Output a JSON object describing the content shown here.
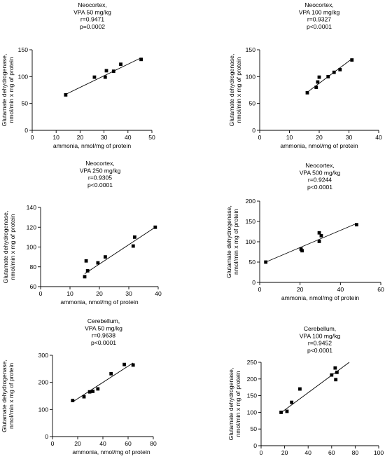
{
  "chart_data": [
    {
      "type": "scatter",
      "title_lines": [
        "Neocortex,",
        "VPA 50 mg/kg",
        "r=0.9471",
        "p=0.0002"
      ],
      "xlabel": "ammonia, nmol/mg of protein",
      "ylabel_lines": [
        "Glutamate dehydrogenase,",
        "nmol/min x mg of protein"
      ],
      "xlim": [
        0,
        50
      ],
      "ylim": [
        0,
        150
      ],
      "xticks": [
        0,
        10,
        20,
        30,
        40,
        50
      ],
      "yticks": [
        0,
        50,
        100,
        150
      ],
      "points": [
        [
          14,
          66
        ],
        [
          26,
          99
        ],
        [
          30.5,
          99
        ],
        [
          31,
          111
        ],
        [
          34,
          110
        ],
        [
          37,
          123
        ],
        [
          45.5,
          132
        ]
      ],
      "fit": [
        [
          14,
          67
        ],
        [
          45.5,
          135
        ]
      ]
    },
    {
      "type": "scatter",
      "title_lines": [
        "Neocortex,",
        "VPA 100 mg/kg",
        "r=0.9327",
        "p<0.0001"
      ],
      "xlabel": "ammonia, nmol/mg of protein",
      "ylabel_lines": [
        "Glutamate dehydrogenase,",
        "nmol/min x mg of protein"
      ],
      "xlim": [
        0,
        40
      ],
      "ylim": [
        0,
        150
      ],
      "xticks": [
        0,
        10,
        20,
        30,
        40
      ],
      "yticks": [
        0,
        50,
        100,
        150
      ],
      "points": [
        [
          16,
          70
        ],
        [
          19,
          80
        ],
        [
          19.5,
          90
        ],
        [
          20,
          99
        ],
        [
          23,
          100
        ],
        [
          25,
          108
        ],
        [
          27,
          113
        ],
        [
          31,
          131
        ]
      ],
      "fit": [
        [
          16,
          71
        ],
        [
          31,
          133
        ]
      ]
    },
    {
      "type": "scatter",
      "title_lines": [
        "Neocortex,",
        "VPA 250 mg/kg",
        "r=0.9305",
        "p<0.0001"
      ],
      "xlabel": "ammonia, nmol/mg of protein",
      "ylabel_lines": [
        "Glutamate dehydrogenase,",
        "nmol/min x mg of protein"
      ],
      "xlim": [
        0,
        40
      ],
      "ylim": [
        60,
        140
      ],
      "xticks": [
        0,
        10,
        20,
        30,
        40
      ],
      "yticks": [
        60,
        80,
        100,
        120,
        140
      ],
      "points": [
        [
          15,
          70
        ],
        [
          15.5,
          86
        ],
        [
          16,
          76
        ],
        [
          19.5,
          84
        ],
        [
          22,
          90
        ],
        [
          31.5,
          101
        ],
        [
          32,
          110
        ],
        [
          39,
          120
        ]
      ],
      "fit": [
        [
          15,
          73
        ],
        [
          39,
          120
        ]
      ]
    },
    {
      "type": "scatter",
      "title_lines": [
        "Neocortex,",
        "VPA 500 mg/kg",
        "r=0.9244",
        "p<0.0001"
      ],
      "xlabel": "ammonia, nmol/mg of protein",
      "ylabel_lines": [
        "Glutamate dehydrogenase,",
        "nmol/min x mg of protein"
      ],
      "xlim": [
        0,
        60
      ],
      "ylim": [
        0,
        200
      ],
      "xticks": [
        0,
        20,
        40,
        60
      ],
      "yticks": [
        0,
        50,
        100,
        150,
        200
      ],
      "points": [
        [
          3,
          50
        ],
        [
          20.5,
          82
        ],
        [
          21,
          78
        ],
        [
          29.5,
          101
        ],
        [
          29.5,
          122
        ],
        [
          30.5,
          115
        ],
        [
          48,
          142
        ]
      ],
      "fit": [
        [
          3,
          50
        ],
        [
          48,
          145
        ]
      ]
    },
    {
      "type": "scatter",
      "title_lines": [
        "Cerebellum,",
        "VPA 50 mg/kg",
        "r=0.9638",
        "p<0.0001"
      ],
      "xlabel": "ammonia, nmol/mg of protein",
      "ylabel_lines": [
        "Glutamate dehydrogenase,",
        "nmol/min x mg of protein"
      ],
      "xlim": [
        0,
        80
      ],
      "ylim": [
        0,
        300
      ],
      "xticks": [
        0,
        20,
        40,
        60,
        80
      ],
      "yticks": [
        0,
        100,
        200,
        300
      ],
      "points": [
        [
          16,
          133
        ],
        [
          25,
          147
        ],
        [
          29.5,
          165
        ],
        [
          32,
          167
        ],
        [
          36,
          176
        ],
        [
          46.5,
          232
        ],
        [
          57,
          266
        ],
        [
          64,
          264
        ]
      ],
      "fit": [
        [
          16,
          128
        ],
        [
          64,
          272
        ]
      ]
    },
    {
      "type": "scatter",
      "title_lines": [
        "Cerebellum,",
        "VPA 100 mg/kg",
        "r=0.9452",
        "p<0.0001"
      ],
      "xlabel": "ammonia, nmol/mg of protein",
      "ylabel_lines": [
        "Glutamate dehydrogenase,",
        "nmol/min x mg of protein"
      ],
      "xlim": [
        0,
        100
      ],
      "ylim": [
        0,
        250
      ],
      "xticks": [
        0,
        20,
        40,
        60,
        80,
        100
      ],
      "yticks": [
        0,
        50,
        100,
        150,
        200,
        250
      ],
      "points": [
        [
          17,
          100
        ],
        [
          22,
          103
        ],
        [
          26,
          130
        ],
        [
          33,
          170
        ],
        [
          60,
          212
        ],
        [
          63,
          233
        ],
        [
          63.5,
          198
        ],
        [
          64.5,
          220
        ]
      ],
      "fit": [
        [
          17,
          99
        ],
        [
          75,
          250
        ]
      ]
    }
  ]
}
